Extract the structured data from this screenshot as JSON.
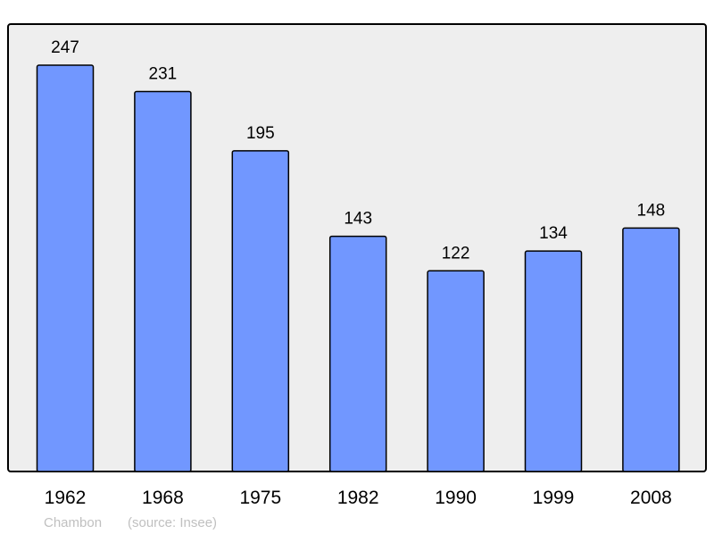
{
  "chart_data": {
    "type": "bar",
    "title": "",
    "xlabel": "",
    "ylabel": "",
    "categories": [
      "1962",
      "1968",
      "1975",
      "1982",
      "1990",
      "1999",
      "2008"
    ],
    "values": [
      247,
      231,
      195,
      143,
      122,
      134,
      148
    ],
    "data_labels": [
      "247",
      "231",
      "195",
      "143",
      "122",
      "134",
      "148"
    ],
    "ylim": [
      0,
      272
    ],
    "grid": false,
    "colors": {
      "bar": "#7197ff",
      "plot_background": "#eeeeee",
      "border": "#000000",
      "footer_text": "#c0c0c0"
    }
  },
  "footer": {
    "place": "Chambon",
    "source": "(source: Insee)"
  }
}
